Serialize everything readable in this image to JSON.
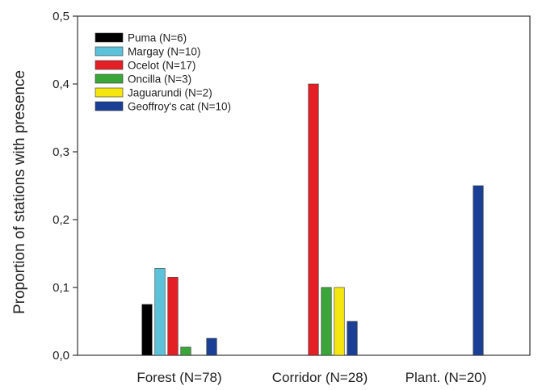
{
  "chart_data": {
    "type": "bar",
    "ylabel": "Proportion of stations with presence",
    "xlabel": "",
    "ylim": [
      0,
      0.5
    ],
    "yticks": [
      0,
      0.1,
      0.2,
      0.3,
      0.4,
      0.5
    ],
    "ytick_labels": [
      "0,0",
      "0,1",
      "0,2",
      "0,3",
      "0,4",
      "0,5"
    ],
    "categories": [
      "Forest (N=78)",
      "Corridor (N=28)",
      "Plant. (N=20)"
    ],
    "legend_position": "top-left",
    "series": [
      {
        "name": "Puma (N=6)",
        "color": "#000000",
        "values": [
          0.075,
          0,
          0
        ]
      },
      {
        "name": "Margay (N=10)",
        "color": "#5bc2d9",
        "values": [
          0.128,
          0,
          0
        ]
      },
      {
        "name": "Ocelot (N=17)",
        "color": "#e41f26",
        "values": [
          0.115,
          0.4,
          0
        ]
      },
      {
        "name": "Oncilla (N=3)",
        "color": "#3aa63a",
        "values": [
          0.012,
          0.1,
          0
        ]
      },
      {
        "name": "Jaguarundi (N=2)",
        "color": "#f5e60f",
        "values": [
          0,
          0.1,
          0
        ]
      },
      {
        "name": "Geoffroy's cat (N=10)",
        "color": "#1a3f94",
        "values": [
          0.025,
          0.05,
          0.25
        ]
      }
    ]
  }
}
